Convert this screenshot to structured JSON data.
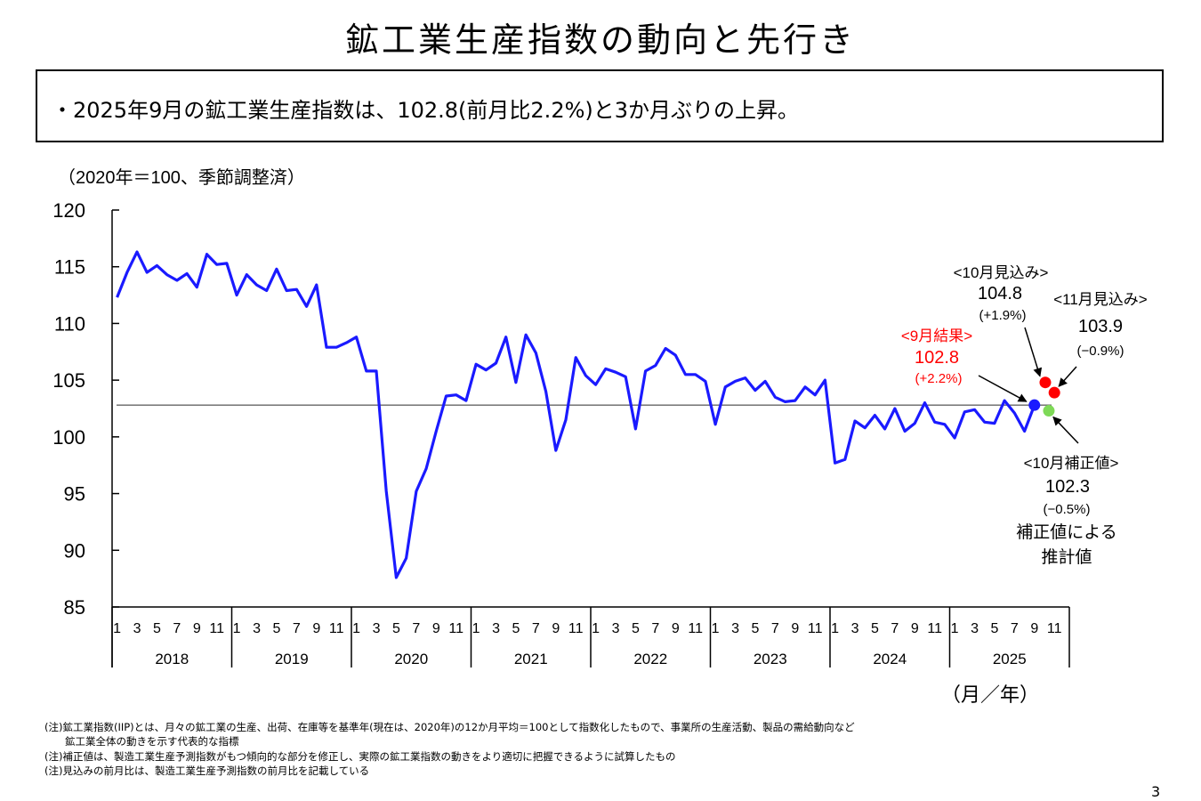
{
  "title": "鉱工業生産指数の動向と先行き",
  "summary": "・2025年9月の鉱工業生産指数は、102.8(前月比2.2%)と3か月ぶりの上昇。",
  "notes": [
    "(注)鉱工業指数(IIP)とは、月々の鉱工業の生産、出荷、在庫等を基準年(現在は、2020年)の12か月平均＝100として指数化したもので、事業所の生産活動、製品の需給動向など",
    "　　鉱工業全体の動きを示す代表的な指標",
    "(注)補正値は、製造工業生産予測指数がもつ傾向的な部分を修正し、実際の鉱工業指数の動きをより適切に把握できるように試算したもの",
    "(注)見込みの前月比は、製造工業生産予測指数の前月比を記載している"
  ],
  "page_number": "3",
  "chart_data": {
    "type": "line",
    "unit_label": "（2020年＝100、季節調整済）",
    "x_axis_label": "（月／年）",
    "ylim": [
      85,
      120
    ],
    "y_ticks": [
      85,
      90,
      95,
      100,
      105,
      110,
      115,
      120
    ],
    "years": [
      "2018",
      "2019",
      "2020",
      "2021",
      "2022",
      "2023",
      "2024",
      "2025"
    ],
    "month_ticks": [
      "1",
      "3",
      "5",
      "7",
      "9",
      "11"
    ],
    "reference_line": 102.8,
    "series": [
      {
        "name": "",
        "color": "#1a1aff",
        "start": "2018-01",
        "values": [
          112.3,
          114.5,
          116.3,
          114.5,
          115.1,
          114.3,
          113.8,
          114.4,
          113.2,
          116.1,
          115.2,
          115.3,
          112.5,
          114.3,
          113.4,
          112.9,
          114.8,
          112.9,
          113.0,
          111.5,
          113.4,
          107.9,
          107.9,
          108.3,
          108.8,
          105.8,
          105.8,
          95.2,
          87.6,
          89.3,
          95.2,
          97.2,
          100.5,
          103.6,
          103.7,
          103.2,
          106.4,
          105.9,
          106.5,
          108.8,
          104.8,
          109.0,
          107.4,
          104.0,
          98.8,
          101.5,
          107.0,
          105.4,
          104.6,
          106.0,
          105.7,
          105.3,
          100.7,
          105.8,
          106.3,
          107.8,
          107.2,
          105.5,
          105.5,
          104.9,
          101.1,
          104.4,
          104.9,
          105.2,
          104.1,
          104.9,
          103.5,
          103.1,
          103.2,
          104.4,
          103.7,
          105.0,
          97.7,
          98.0,
          101.4,
          100.8,
          101.9,
          100.7,
          102.5,
          100.5,
          101.2,
          103.0,
          101.3,
          101.1,
          99.9,
          102.2,
          102.4,
          101.3,
          101.2,
          103.2,
          102.1,
          100.5,
          102.8
        ]
      }
    ],
    "points": [
      {
        "key": "sep",
        "month": "2025-09",
        "value": 102.8,
        "color": "#1a1aff"
      },
      {
        "key": "oct",
        "month": "2025-10",
        "value": 104.8,
        "color": "#ff0000"
      },
      {
        "key": "nov",
        "month": "2025-11",
        "value": 103.9,
        "color": "#ff0000"
      },
      {
        "key": "adj",
        "month": "2025-10",
        "value": 102.3,
        "color": "#7ed957"
      }
    ],
    "annotations": {
      "sep": {
        "label": "<9月結果>",
        "value": "102.8",
        "change": "(+2.2%)",
        "color": "#ff0000"
      },
      "oct": {
        "label": "<10月見込み>",
        "value": "104.8",
        "change": "(+1.9%)",
        "color": "#000000"
      },
      "nov": {
        "label": "<11月見込み>",
        "value": "103.9",
        "change": "(−0.9%)",
        "color": "#000000"
      },
      "adj": {
        "label": "<10月補正値>",
        "value": "102.3",
        "change": "(−0.5%)",
        "note1": "補正値による",
        "note2": "推計値",
        "color": "#000000"
      }
    }
  }
}
